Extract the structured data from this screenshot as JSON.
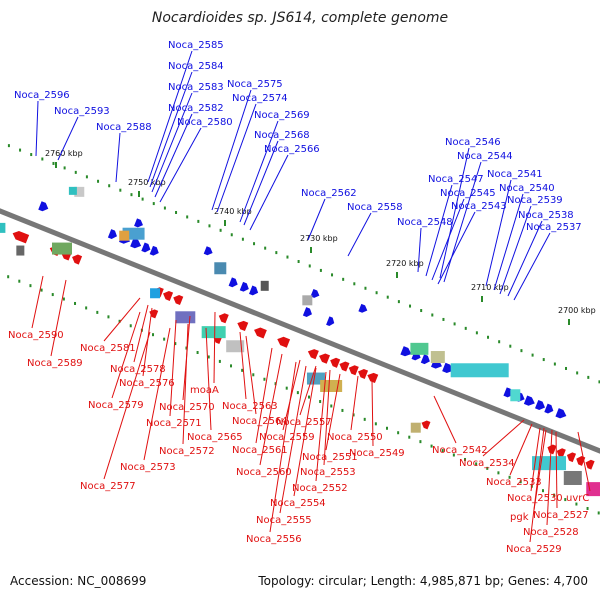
{
  "title": "Nocardioides sp. JS614, complete genome",
  "accession": "Accession: NC_008699",
  "summary": "Topology: circular; Length: 4,985,871 bp; Genes: 4,700",
  "colors": {
    "forward": "#1010e0",
    "reverse": "#e01010",
    "backbone": "#777777",
    "tick": "#2a8a2a"
  },
  "scale_labels": [
    "2760 kbp",
    "2750 kbp",
    "2740 kbp",
    "2730 kbp",
    "2720 kbp",
    "2710 kbp",
    "2700 kbp"
  ],
  "top_labels": [
    "Noca_2585",
    "Noca_2584",
    "Noca_2583",
    "Noca_2582",
    "Noca_2580",
    "Noca_2575",
    "Noca_2574",
    "Noca_2569",
    "Noca_2568",
    "Noca_2566",
    "Noca_2596",
    "Noca_2593",
    "Noca_2588",
    "Noca_2562",
    "Noca_2558",
    "Noca_2546",
    "Noca_2544",
    "Noca_2547",
    "Noca_2545",
    "Noca_2543",
    "Noca_2548",
    "Noca_2541",
    "Noca_2540",
    "Noca_2539",
    "Noca_2538",
    "Noca_2537"
  ],
  "bottom_labels": [
    "Noca_2590",
    "Noca_2589",
    "Noca_2581",
    "Noca_2578",
    "Noca_2576",
    "Noca_2579",
    "Noca_2570",
    "moaA",
    "Noca_2571",
    "Noca_2572",
    "Noca_2573",
    "Noca_2577",
    "Noca_2565",
    "Noca_2564",
    "Noca_2563",
    "Noca_2561",
    "Noca_2560",
    "Noca_2559",
    "Noca_2557",
    "Noca_2553",
    "Noca_2551",
    "Noca_2552",
    "Noca_2554",
    "Noca_2555",
    "Noca_2556",
    "Noca_2550",
    "Noca_2549",
    "Noca_2542",
    "Noca_2534",
    "Noca_2533",
    "Noca_2530",
    "uvrC",
    "pgk",
    "Noca_2527",
    "Noca_2528",
    "Noca_2529"
  ]
}
